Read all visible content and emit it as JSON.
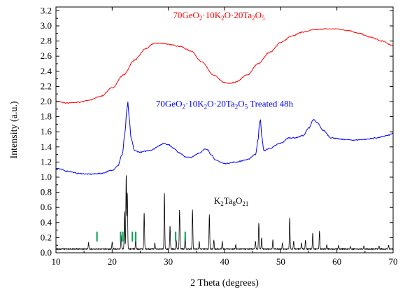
{
  "chart_data": {
    "type": "line",
    "xlabel": "2 Theta (degrees)",
    "ylabel": "Intensity (a.u.)",
    "xlim": [
      10,
      70
    ],
    "ylim": [
      0.0,
      3.25
    ],
    "xticks": [
      10,
      20,
      30,
      40,
      50,
      60,
      70
    ],
    "yticks": [
      0.0,
      0.2,
      0.4,
      0.6,
      0.8,
      1.0,
      1.2,
      1.4,
      1.6,
      1.8,
      2.0,
      2.2,
      2.4,
      2.6,
      2.8,
      3.0,
      3.2
    ],
    "grid": false,
    "series": [
      {
        "label_parts": [
          "70GeO",
          "2",
          "·10K",
          "2",
          "O·20Ta",
          "2",
          "O",
          "5"
        ],
        "color": "#ff0000",
        "label_pos": [
          39.0,
          3.1
        ],
        "x": [
          10,
          12,
          14,
          16,
          18,
          20,
          22,
          24,
          26,
          27.5,
          29,
          30.5,
          32,
          34,
          36,
          38,
          40,
          41,
          42,
          44,
          46,
          48,
          50,
          52,
          54,
          56,
          58,
          60,
          62,
          64,
          66,
          68,
          70
        ],
        "y": [
          2.0,
          1.98,
          1.99,
          2.02,
          2.07,
          2.18,
          2.35,
          2.55,
          2.7,
          2.77,
          2.77,
          2.75,
          2.73,
          2.67,
          2.52,
          2.35,
          2.25,
          2.24,
          2.26,
          2.35,
          2.5,
          2.65,
          2.78,
          2.87,
          2.92,
          2.95,
          2.96,
          2.96,
          2.94,
          2.9,
          2.85,
          2.8,
          2.74
        ]
      },
      {
        "label_parts": [
          "70GeO",
          "2",
          "·10K",
          "2",
          "O·20Ta",
          "2",
          "O",
          "5",
          " Treated 48h"
        ],
        "color": "#0000ff",
        "label_pos": [
          40.0,
          1.93
        ],
        "x": [
          10,
          12,
          14,
          16,
          18,
          20,
          21,
          21.8,
          22.3,
          22.6,
          22.8,
          23.0,
          23.4,
          24.0,
          25,
          27,
          28.5,
          29.2,
          30,
          31,
          32,
          33,
          34,
          35.5,
          36.5,
          37.0,
          37.6,
          38.5,
          40,
          42,
          44,
          45.5,
          46.0,
          46.2,
          46.4,
          46.6,
          47.0,
          48,
          50,
          51.5,
          52.5,
          54,
          55.0,
          55.8,
          56.5,
          57.5,
          59,
          61,
          63,
          65,
          67,
          69,
          70
        ],
        "y": [
          1.12,
          1.08,
          1.05,
          1.04,
          1.05,
          1.09,
          1.15,
          1.3,
          1.6,
          1.88,
          1.99,
          1.8,
          1.5,
          1.35,
          1.33,
          1.36,
          1.42,
          1.45,
          1.43,
          1.38,
          1.32,
          1.27,
          1.26,
          1.32,
          1.37,
          1.36,
          1.3,
          1.22,
          1.18,
          1.2,
          1.23,
          1.3,
          1.5,
          1.72,
          1.76,
          1.55,
          1.35,
          1.38,
          1.45,
          1.52,
          1.52,
          1.55,
          1.65,
          1.76,
          1.72,
          1.62,
          1.52,
          1.5,
          1.49,
          1.5,
          1.52,
          1.55,
          1.58
        ]
      }
    ],
    "stick_pattern": {
      "label_parts": [
        "K",
        "2",
        "Ta",
        "8",
        "O",
        "21"
      ],
      "color": "#000000",
      "label_pos": [
        41.2,
        0.65
      ],
      "baseline": 0.05,
      "peaks": [
        [
          15.8,
          0.08
        ],
        [
          20.0,
          0.09
        ],
        [
          21.6,
          0.18
        ],
        [
          22.2,
          0.5
        ],
        [
          22.5,
          0.98
        ],
        [
          22.7,
          0.75
        ],
        [
          24.2,
          0.12
        ],
        [
          25.7,
          0.48
        ],
        [
          27.6,
          0.08
        ],
        [
          29.3,
          0.75
        ],
        [
          30.3,
          0.3
        ],
        [
          31.4,
          0.12
        ],
        [
          32.0,
          0.52
        ],
        [
          33.0,
          0.22
        ],
        [
          34.3,
          0.52
        ],
        [
          35.5,
          0.1
        ],
        [
          37.3,
          0.45
        ],
        [
          38.1,
          0.12
        ],
        [
          39.6,
          0.1
        ],
        [
          42.0,
          0.06
        ],
        [
          45.5,
          0.1
        ],
        [
          46.1,
          0.35
        ],
        [
          46.6,
          0.15
        ],
        [
          48.6,
          0.12
        ],
        [
          50.3,
          0.08
        ],
        [
          51.6,
          0.42
        ],
        [
          52.3,
          0.1
        ],
        [
          53.7,
          0.08
        ],
        [
          54.4,
          0.12
        ],
        [
          55.7,
          0.22
        ],
        [
          56.9,
          0.24
        ],
        [
          58.2,
          0.06
        ],
        [
          60.3,
          0.05
        ],
        [
          62.4,
          0.04
        ],
        [
          64.8,
          0.04
        ],
        [
          67.5,
          0.04
        ],
        [
          69.2,
          0.05
        ]
      ],
      "noise_seed": 7
    },
    "reference_markers": {
      "color": "#00a050",
      "positions": [
        17.3,
        21.5,
        21.9,
        23.6,
        24.2,
        31.3,
        33.0
      ],
      "y_range": [
        0.15,
        0.28
      ]
    }
  }
}
